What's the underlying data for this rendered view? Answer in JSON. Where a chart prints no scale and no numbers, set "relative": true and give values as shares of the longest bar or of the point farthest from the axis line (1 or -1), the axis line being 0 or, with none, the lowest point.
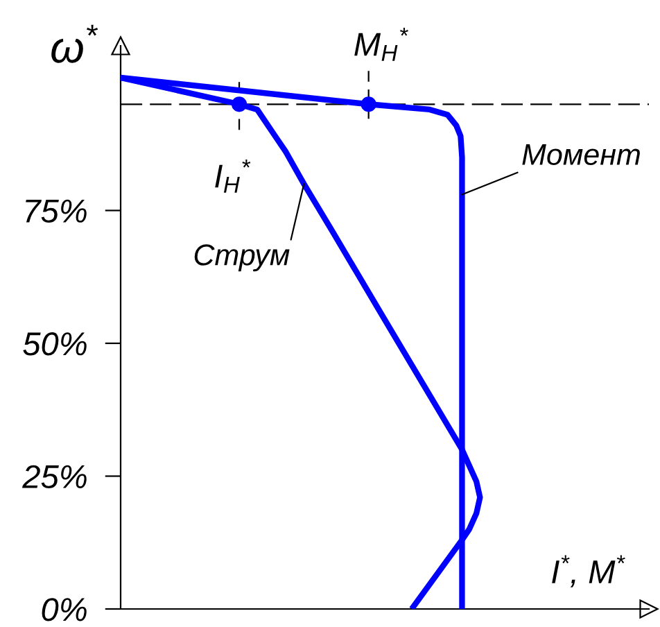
{
  "chart_data": {
    "type": "line",
    "orientation": "horizontal",
    "relative": true,
    "xlabel": "I$^{*}$, M$^{*}$",
    "ylabel": "ω$^{*}$",
    "ylim": [
      0,
      106
    ],
    "yticks": [
      {
        "value": 0,
        "label": "0%"
      },
      {
        "value": 25,
        "label": "25%"
      },
      {
        "value": 50,
        "label": "50%"
      },
      {
        "value": 75,
        "label": "75%"
      }
    ],
    "tick_labels": "y",
    "series": [
      {
        "name": "Момент",
        "color": "#0000ff",
        "x": [
          100,
          95,
          94,
          93,
          91,
          89,
          85,
          78,
          0
        ],
        "values": [
          0,
          0.69,
          0.86,
          0.91,
          0.934,
          0.946,
          0.95,
          0.95,
          0.95
        ]
      },
      {
        "name": "Струм",
        "color": "#0000ff",
        "x": [
          100,
          95,
          94,
          89,
          86,
          80,
          71,
          55,
          30,
          27,
          24,
          21,
          18,
          15,
          13,
          0
        ],
        "values": [
          0,
          0.33,
          0.38,
          0.43,
          0.46,
          0.51,
          0.59,
          0.73,
          0.95,
          0.97,
          0.99,
          1.0,
          0.99,
          0.97,
          0.95,
          0.81
        ]
      }
    ],
    "ref_lines": [
      {
        "axis": "y",
        "value": 95,
        "color": "#000000",
        "line_style": "dashed"
      }
    ],
    "annotations": [
      {
        "text": "I$_{Н}$$^{*}$",
        "x": 0.33,
        "y": 95
      },
      {
        "text": "M$_{Н}$$^{*}$",
        "x": 0.69,
        "y": 95
      }
    ]
  }
}
